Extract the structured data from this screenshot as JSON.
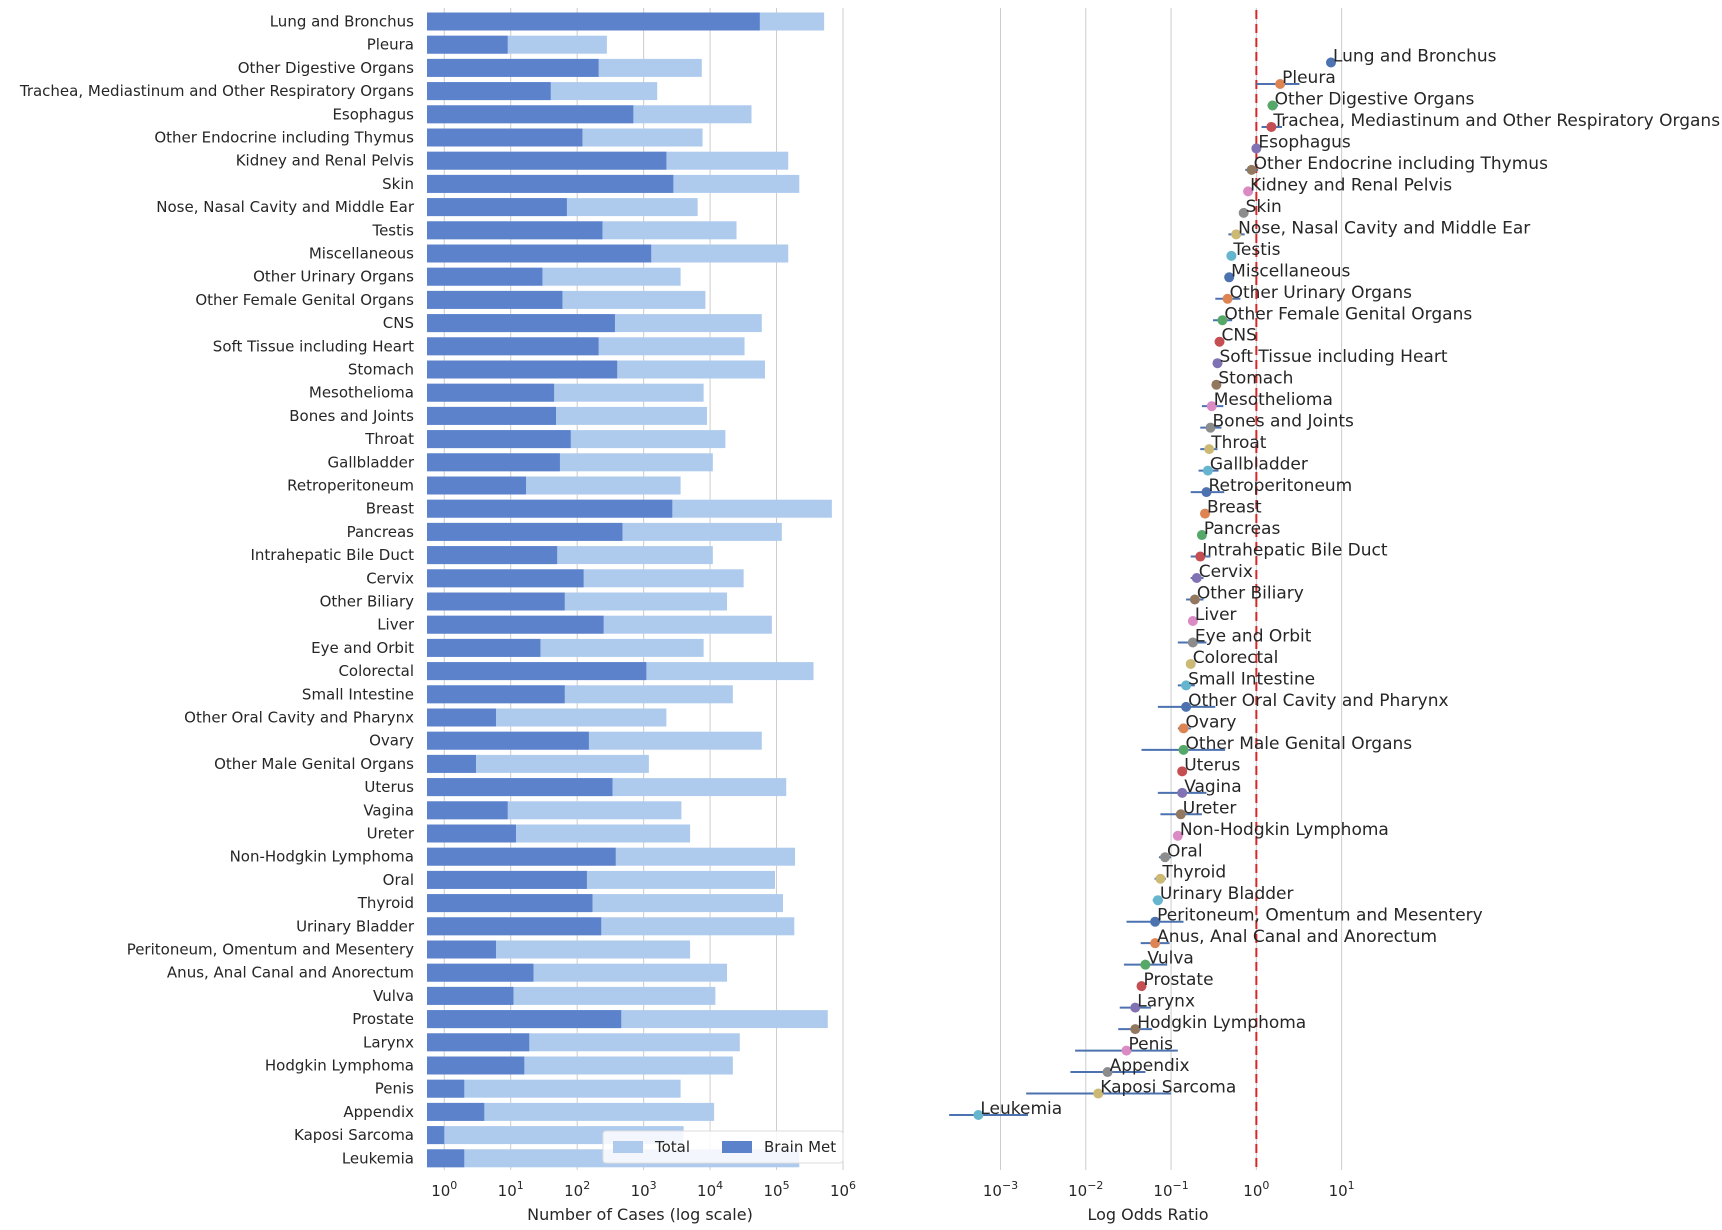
{
  "chart_data": [
    {
      "type": "bar",
      "orientation": "horizontal",
      "xscale": "log",
      "xlim": [
        0.55,
        1000000
      ],
      "xlabel": "Number of Cases (log scale)",
      "xticks": [
        1,
        10,
        100,
        1000,
        10000,
        100000,
        1000000
      ],
      "xtick_labels": [
        {
          "base": "10",
          "exp": "0"
        },
        {
          "base": "10",
          "exp": "1"
        },
        {
          "base": "10",
          "exp": "2"
        },
        {
          "base": "10",
          "exp": "3"
        },
        {
          "base": "10",
          "exp": "4"
        },
        {
          "base": "10",
          "exp": "5"
        },
        {
          "base": "10",
          "exp": "6"
        }
      ],
      "grid": "vertical",
      "legend_position": "bottom-right",
      "categories": [
        "Lung and Bronchus",
        "Pleura",
        "Other Digestive Organs",
        "Trachea, Mediastinum and Other Respiratory Organs",
        "Esophagus",
        "Other Endocrine including Thymus",
        "Kidney and Renal Pelvis",
        "Skin",
        "Nose, Nasal Cavity and Middle Ear",
        "Testis",
        "Miscellaneous",
        "Other Urinary Organs",
        "Other Female Genital Organs",
        "CNS",
        "Soft Tissue including Heart",
        "Stomach",
        "Mesothelioma",
        "Bones and Joints",
        "Throat",
        "Gallbladder",
        "Retroperitoneum",
        "Breast",
        "Pancreas",
        "Intrahepatic Bile Duct",
        "Cervix",
        "Other Biliary",
        "Liver",
        "Eye and Orbit",
        "Colorectal",
        "Small Intestine",
        "Other Oral Cavity and Pharynx",
        "Ovary",
        "Other Male Genital Organs",
        "Uterus",
        "Vagina",
        "Ureter",
        "Non-Hodgkin Lymphoma",
        "Oral",
        "Thyroid",
        "Urinary Bladder",
        "Peritoneum, Omentum and Mesentery",
        "Anus, Anal Canal and Anorectum",
        "Vulva",
        "Prostate",
        "Larynx",
        "Hodgkin Lymphoma",
        "Penis",
        "Appendix",
        "Kaposi Sarcoma",
        "Leukemia"
      ],
      "series": [
        {
          "name": "Total",
          "color": "#aecbee",
          "values": [
            520000,
            280,
            7500,
            1600,
            42000,
            7700,
            150000,
            220000,
            6500,
            25000,
            150000,
            3600,
            8500,
            60000,
            33000,
            67000,
            8000,
            9000,
            17000,
            11000,
            3600,
            680000,
            120000,
            11000,
            32000,
            18000,
            85000,
            8000,
            360000,
            22000,
            2200,
            60000,
            1200,
            140000,
            3700,
            5000,
            190000,
            95000,
            125000,
            185000,
            5000,
            18000,
            12000,
            590000,
            28000,
            22000,
            3600,
            11500,
            4000,
            220000
          ]
        },
        {
          "name": "Brain Met",
          "color": "#5c82cc",
          "values": [
            56000,
            9,
            210,
            40,
            700,
            120,
            2200,
            2800,
            70,
            240,
            1300,
            30,
            60,
            370,
            210,
            400,
            45,
            48,
            80,
            55,
            17,
            2700,
            480,
            50,
            125,
            65,
            250,
            28,
            1100,
            65,
            6,
            150,
            3,
            340,
            9,
            12,
            380,
            140,
            170,
            230,
            6,
            22,
            11,
            460,
            19,
            16,
            2,
            4,
            1,
            2
          ]
        }
      ]
    },
    {
      "type": "scatter",
      "subtype": "forest-plot",
      "xscale": "log",
      "xlim": [
        0.00018,
        60
      ],
      "xlabel": "Log Odds Ratio",
      "xticks": [
        0.001,
        0.01,
        0.1,
        1,
        10
      ],
      "xtick_labels": [
        {
          "base": "10",
          "exp": "−3"
        },
        {
          "base": "10",
          "exp": "−2"
        },
        {
          "base": "10",
          "exp": "−1"
        },
        {
          "base": "10",
          "exp": "0"
        },
        {
          "base": "10",
          "exp": "1"
        }
      ],
      "reference_line": {
        "x": 1,
        "color": "#d62728",
        "style": "dashed"
      },
      "grid": "vertical",
      "point_colors": [
        "#4c72b0",
        "#dd8452",
        "#55a868",
        "#c44e52",
        "#8172b3",
        "#937860",
        "#da8bc3",
        "#8c8c8c",
        "#ccb974",
        "#64b5cd"
      ],
      "ci_color": "#4c72b0",
      "points": [
        {
          "label": "Lung and Bronchus",
          "or": 7.5,
          "ci": [
            7.0,
            8.1
          ]
        },
        {
          "label": "Pleura",
          "or": 1.9,
          "ci": [
            1.0,
            3.2
          ]
        },
        {
          "label": "Other Digestive Organs",
          "or": 1.55,
          "ci": [
            1.35,
            1.8
          ]
        },
        {
          "label": "Trachea, Mediastinum and Other Respiratory Organs",
          "or": 1.5,
          "ci": [
            1.15,
            2.0
          ]
        },
        {
          "label": "Esophagus",
          "or": 1.0,
          "ci": [
            0.93,
            1.08
          ]
        },
        {
          "label": "Other Endocrine including Thymus",
          "or": 0.88,
          "ci": [
            0.74,
            1.05
          ]
        },
        {
          "label": "Kidney and Renal Pelvis",
          "or": 0.8,
          "ci": [
            0.77,
            0.84
          ]
        },
        {
          "label": "Skin",
          "or": 0.71,
          "ci": [
            0.68,
            0.74
          ]
        },
        {
          "label": "Nose, Nasal Cavity and Middle Ear",
          "or": 0.58,
          "ci": [
            0.47,
            0.73
          ]
        },
        {
          "label": "Testis",
          "or": 0.51,
          "ci": [
            0.46,
            0.57
          ]
        },
        {
          "label": "Miscellaneous",
          "or": 0.48,
          "ci": [
            0.46,
            0.51
          ]
        },
        {
          "label": "Other Urinary Organs",
          "or": 0.46,
          "ci": [
            0.33,
            0.65
          ]
        },
        {
          "label": "Other Female Genital Organs",
          "or": 0.4,
          "ci": [
            0.31,
            0.52
          ]
        },
        {
          "label": "CNS",
          "or": 0.37,
          "ci": [
            0.34,
            0.41
          ]
        },
        {
          "label": "Soft Tissue including Heart",
          "or": 0.35,
          "ci": [
            0.31,
            0.4
          ]
        },
        {
          "label": "Stomach",
          "or": 0.34,
          "ci": [
            0.31,
            0.37
          ]
        },
        {
          "label": "Mesothelioma",
          "or": 0.3,
          "ci": [
            0.23,
            0.41
          ]
        },
        {
          "label": "Bones and Joints",
          "or": 0.29,
          "ci": [
            0.22,
            0.39
          ]
        },
        {
          "label": "Throat",
          "or": 0.28,
          "ci": [
            0.22,
            0.35
          ]
        },
        {
          "label": "Gallbladder",
          "or": 0.27,
          "ci": [
            0.21,
            0.36
          ]
        },
        {
          "label": "Retroperitoneum",
          "or": 0.26,
          "ci": [
            0.17,
            0.42
          ]
        },
        {
          "label": "Breast",
          "or": 0.25,
          "ci": [
            0.24,
            0.26
          ]
        },
        {
          "label": "Pancreas",
          "or": 0.23,
          "ci": [
            0.21,
            0.25
          ]
        },
        {
          "label": "Intrahepatic Bile Duct",
          "or": 0.22,
          "ci": [
            0.17,
            0.29
          ]
        },
        {
          "label": "Cervix",
          "or": 0.2,
          "ci": [
            0.17,
            0.24
          ]
        },
        {
          "label": "Other Biliary",
          "or": 0.19,
          "ci": [
            0.15,
            0.24
          ]
        },
        {
          "label": "Liver",
          "or": 0.18,
          "ci": [
            0.16,
            0.2
          ]
        },
        {
          "label": "Eye and Orbit",
          "or": 0.18,
          "ci": [
            0.12,
            0.26
          ]
        },
        {
          "label": "Colorectal",
          "or": 0.17,
          "ci": [
            0.16,
            0.18
          ]
        },
        {
          "label": "Small Intestine",
          "or": 0.15,
          "ci": [
            0.12,
            0.19
          ]
        },
        {
          "label": "Other Oral Cavity and Pharynx",
          "or": 0.15,
          "ci": [
            0.07,
            0.33
          ]
        },
        {
          "label": "Ovary",
          "or": 0.14,
          "ci": [
            0.12,
            0.17
          ]
        },
        {
          "label": "Other Male Genital Organs",
          "or": 0.14,
          "ci": [
            0.045,
            0.43
          ]
        },
        {
          "label": "Uterus",
          "or": 0.135,
          "ci": [
            0.12,
            0.15
          ]
        },
        {
          "label": "Vagina",
          "or": 0.135,
          "ci": [
            0.07,
            0.26
          ]
        },
        {
          "label": "Ureter",
          "or": 0.13,
          "ci": [
            0.075,
            0.23
          ]
        },
        {
          "label": "Non-Hodgkin Lymphoma",
          "or": 0.12,
          "ci": [
            0.11,
            0.13
          ]
        },
        {
          "label": "Oral",
          "or": 0.085,
          "ci": [
            0.072,
            0.1
          ]
        },
        {
          "label": "Thyroid",
          "or": 0.075,
          "ci": [
            0.064,
            0.087
          ]
        },
        {
          "label": "Urinary Bladder",
          "or": 0.07,
          "ci": [
            0.061,
            0.08
          ]
        },
        {
          "label": "Peritoneum, Omentum and Mesentery",
          "or": 0.065,
          "ci": [
            0.03,
            0.14
          ]
        },
        {
          "label": "Anus, Anal Canal and Anorectum",
          "or": 0.065,
          "ci": [
            0.044,
            0.096
          ]
        },
        {
          "label": "Vulva",
          "or": 0.05,
          "ci": [
            0.028,
            0.09
          ]
        },
        {
          "label": "Prostate",
          "or": 0.045,
          "ci": [
            0.041,
            0.05
          ]
        },
        {
          "label": "Larynx",
          "or": 0.038,
          "ci": [
            0.025,
            0.058
          ]
        },
        {
          "label": "Hodgkin Lymphoma",
          "or": 0.038,
          "ci": [
            0.024,
            0.06
          ]
        },
        {
          "label": "Penis",
          "or": 0.03,
          "ci": [
            0.0075,
            0.12
          ]
        },
        {
          "label": "Appendix",
          "or": 0.018,
          "ci": [
            0.0066,
            0.05
          ]
        },
        {
          "label": "Kaposi Sarcoma",
          "or": 0.014,
          "ci": [
            0.002,
            0.1
          ]
        },
        {
          "label": "Leukemia",
          "or": 0.00055,
          "ci": [
            0.00025,
            0.0021
          ]
        }
      ]
    }
  ]
}
